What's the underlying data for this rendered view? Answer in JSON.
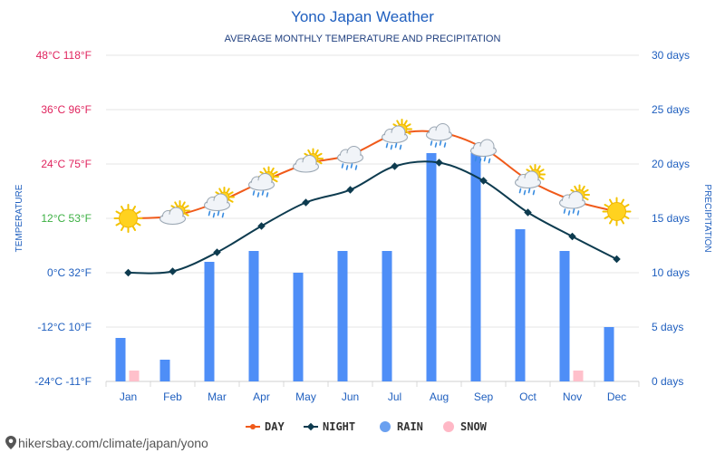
{
  "chart_data": {
    "type": "bar+line",
    "title": "Yono Japan Weather",
    "subtitle": "AVERAGE MONTHLY TEMPERATURE AND PRECIPITATION",
    "ylabel_left": "TEMPERATURE",
    "ylabel_right": "PRECIPITATION",
    "categories": [
      "Jan",
      "Feb",
      "Mar",
      "Apr",
      "May",
      "Jun",
      "Jul",
      "Aug",
      "Sep",
      "Oct",
      "Nov",
      "Dec"
    ],
    "left_axis": {
      "min": -24,
      "max": 48,
      "ticks": [
        {
          "value": 48,
          "label": "48°C 118°F",
          "color": "#e0245e"
        },
        {
          "value": 36,
          "label": "36°C 96°F",
          "color": "#e0245e"
        },
        {
          "value": 24,
          "label": "24°C 75°F",
          "color": "#e0245e"
        },
        {
          "value": 12,
          "label": "12°C 53°F",
          "color": "#3cb043"
        },
        {
          "value": 0,
          "label": "0°C 32°F",
          "color": "#1f5fbf"
        },
        {
          "value": -12,
          "label": "-12°C 10°F",
          "color": "#1f5fbf"
        },
        {
          "value": -24,
          "label": "-24°C -11°F",
          "color": "#1f5fbf"
        }
      ]
    },
    "right_axis": {
      "min": 0,
      "max": 30,
      "ticks": [
        {
          "value": 30,
          "label": "30 days"
        },
        {
          "value": 25,
          "label": "25 days"
        },
        {
          "value": 20,
          "label": "20 days"
        },
        {
          "value": 15,
          "label": "15 days"
        },
        {
          "value": 10,
          "label": "10 days"
        },
        {
          "value": 5,
          "label": "5 days"
        },
        {
          "value": 0,
          "label": "0 days"
        }
      ]
    },
    "series": [
      {
        "name": "DAY",
        "kind": "line",
        "axis": "left",
        "color": "#f05a1a",
        "values": [
          12,
          12.5,
          15.5,
          20,
          24,
          26,
          30.5,
          31,
          27.5,
          20.5,
          16,
          13.5
        ]
      },
      {
        "name": "NIGHT",
        "kind": "line",
        "axis": "left",
        "color": "#0d3b4f",
        "values": [
          0,
          0.3,
          4.5,
          10.3,
          15.5,
          18.3,
          23.5,
          24.3,
          20.3,
          13.3,
          8,
          3
        ]
      },
      {
        "name": "RAIN",
        "kind": "bar",
        "axis": "right",
        "color": "#4e8ef7",
        "values": [
          4,
          2,
          11,
          12,
          10,
          12,
          12,
          21,
          21,
          14,
          12,
          5
        ]
      },
      {
        "name": "SNOW",
        "kind": "bar",
        "axis": "right",
        "color": "#ffc0cb",
        "values": [
          1,
          0,
          0,
          0,
          0,
          0,
          0,
          0,
          0,
          0,
          1,
          0
        ]
      }
    ],
    "weather_icons": [
      "sun",
      "sun-cloud",
      "sun-cloud-rain",
      "sun-cloud-rain",
      "sun-cloud",
      "cloud-rain",
      "sun-cloud-rain",
      "cloud-rain",
      "cloud-rain",
      "sun-cloud-rain",
      "sun-cloud-rain",
      "sun"
    ],
    "legend": [
      {
        "name": "DAY",
        "color": "#f05a1a",
        "marker": "line-dot"
      },
      {
        "name": "NIGHT",
        "color": "#0d3b4f",
        "marker": "line-diamond"
      },
      {
        "name": "RAIN",
        "color": "#6aa0f0",
        "marker": "circle"
      },
      {
        "name": "SNOW",
        "color": "#ffb8c6",
        "marker": "circle"
      }
    ],
    "legend_position": "bottom-center",
    "grid": true
  },
  "footer": {
    "source_text": "hikersbay.com/climate/japan/yono",
    "pin_icon": "location-pin-icon"
  },
  "colors": {
    "title": "#1f5fbf",
    "axis_text": "#1f5fbf",
    "grid": "#e6e6e6"
  }
}
